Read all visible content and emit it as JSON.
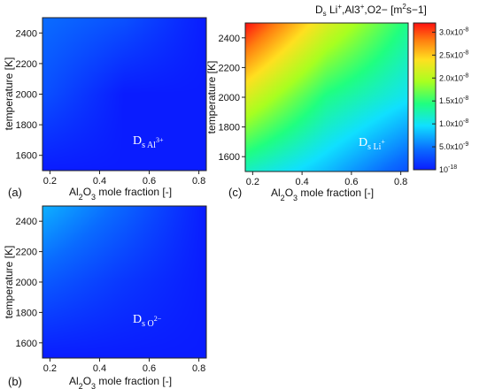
{
  "chart_data": [
    {
      "type": "heatmap",
      "panel": "(a)",
      "xlabel": "Al2O3 mole fraction [-]",
      "ylabel": "temperature [K]",
      "xlim": [
        0.17,
        0.83
      ],
      "ylim": [
        1500,
        2500
      ],
      "xticks": [
        0.2,
        0.4,
        0.6,
        0.8
      ],
      "yticks": [
        1600,
        1800,
        2000,
        2200,
        2400
      ],
      "xtick_labels": [
        "0.2",
        "0.4",
        "0.6",
        "0.8"
      ],
      "ytick_labels": [
        "1600",
        "1800",
        "2000",
        "2200",
        "2400"
      ],
      "annotation": {
        "main": "D",
        "sub": "s Al³⁺"
      },
      "x": [
        0.17,
        0.5,
        0.83
      ],
      "y": [
        1500,
        2000,
        2500
      ],
      "z": [
        [
          1e-18,
          1e-18,
          1e-18
        ],
        [
          3e-09,
          1e-18,
          1e-18
        ],
        [
          4.5e-09,
          3e-09,
          1e-18
        ]
      ]
    },
    {
      "type": "heatmap",
      "panel": "(b)",
      "xlabel": "Al2O3 mole fraction [-]",
      "ylabel": "temperature [K]",
      "xlim": [
        0.17,
        0.83
      ],
      "ylim": [
        1500,
        2500
      ],
      "xticks": [
        0.2,
        0.4,
        0.6,
        0.8
      ],
      "yticks": [
        1600,
        1800,
        2000,
        2200,
        2400
      ],
      "xtick_labels": [
        "0.2",
        "0.4",
        "0.6",
        "0.8"
      ],
      "ytick_labels": [
        "1600",
        "1800",
        "2000",
        "2200",
        "2400"
      ],
      "annotation": {
        "main": "D",
        "sub": "s O²⁻"
      },
      "x": [
        0.17,
        0.5,
        0.83
      ],
      "y": [
        1500,
        2000,
        2500
      ],
      "z": [
        [
          1e-18,
          1e-18,
          1e-18
        ],
        [
          3.5e-09,
          1.5e-09,
          1e-18
        ],
        [
          7.5e-09,
          4e-09,
          1e-18
        ]
      ]
    },
    {
      "type": "heatmap",
      "panel": "(c)",
      "xlabel": "Al2O3 mole fraction [-]",
      "ylabel": "temperature [K]",
      "xlim": [
        0.17,
        0.83
      ],
      "ylim": [
        1500,
        2500
      ],
      "xticks": [
        0.2,
        0.4,
        0.6,
        0.8
      ],
      "yticks": [
        1600,
        1800,
        2000,
        2200,
        2400
      ],
      "xtick_labels": [
        "0.2",
        "0.4",
        "0.6",
        "0.8"
      ],
      "ytick_labels": [
        "1600",
        "1800",
        "2000",
        "2200",
        "2400"
      ],
      "annotation": {
        "main": "D",
        "sub": "s Li⁺"
      },
      "x": [
        0.17,
        0.5,
        0.83
      ],
      "y": [
        1500,
        2000,
        2500
      ],
      "z": [
        [
          1.2e-08,
          8e-09,
          3e-09
        ],
        [
          2.2e-08,
          1.4e-08,
          1e-08
        ],
        [
          3.2e-08,
          2.2e-08,
          1.4e-08
        ]
      ]
    }
  ],
  "colorbar": {
    "title": "Ds Li+,Al3+,O2− [m2s−1]",
    "title_main": "D",
    "title_sub": "s",
    "title_mid": " Li",
    "title_sup1": "+",
    "title_mid2": ",Al3",
    "title_sup2": "+",
    "title_mid3": ",O2−  [m",
    "title_sup3": "2",
    "title_end": "s−1]",
    "range": [
      1e-18,
      3.2e-08
    ],
    "ticks": [
      1e-18,
      5e-09,
      1e-08,
      1.5e-08,
      2e-08,
      2.5e-08,
      3e-08
    ],
    "tick_labels": [
      "10-18",
      "5.0x10-9",
      "1.0x10-8",
      "1.5x10-8",
      "2.0x10-8",
      "2.5x10-8",
      "3.0x10-8"
    ],
    "tick_base": [
      "10",
      "5.0x10",
      "1.0x10",
      "1.5x10",
      "2.0x10",
      "2.5x10",
      "3.0x10"
    ],
    "tick_exp": [
      "-18",
      "-9",
      "-8",
      "-8",
      "-8",
      "-8",
      "-8"
    ],
    "colors": [
      "#0a1cff",
      "#0a6cff",
      "#10e0ff",
      "#20ff80",
      "#a8ff20",
      "#ffe020",
      "#ff8010",
      "#ff1010"
    ]
  }
}
